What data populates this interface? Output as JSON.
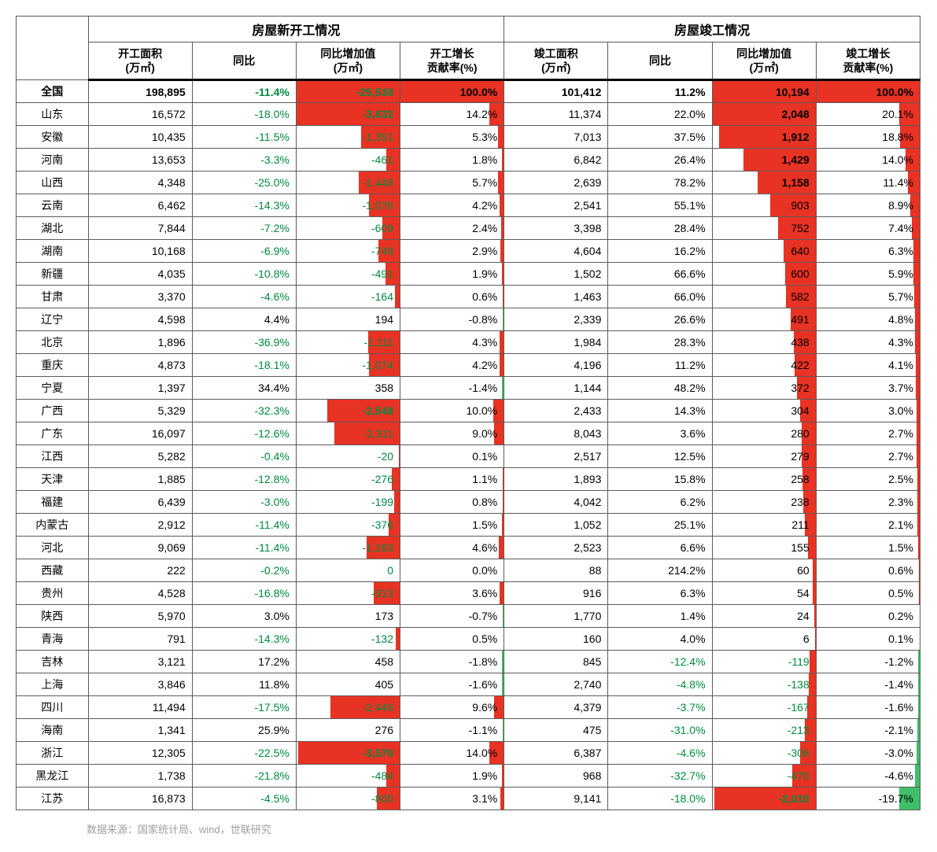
{
  "colors": {
    "green_text": "#008a3e",
    "red_bar": "#e83223",
    "green_bar": "#3fbf6b",
    "border": "#5b5b5b"
  },
  "headers": {
    "group1": "房屋新开工情况",
    "group2": "房屋竣工情况",
    "col1": "开工面积\n(万㎡)",
    "col2": "同比",
    "col3": "同比增加值\n(万㎡)",
    "col4": "开工增长\n贡献率(%)",
    "col5": "竣工面积\n(万㎡)",
    "col6": "同比",
    "col7": "同比增加值\n(万㎡)",
    "col8": "竣工增长\n贡献率(%)"
  },
  "bar_config": {
    "delta1": {
      "min": -3632,
      "max": 458
    },
    "contrib1": {
      "min": -1.8,
      "max": 100.0,
      "neg_is_green": true
    },
    "delta2": {
      "min": -2010,
      "max": 2048
    },
    "contrib2": {
      "min": -19.7,
      "max": 100.0,
      "neg_is_green": true
    }
  },
  "rows": [
    {
      "name": "全国",
      "total": true,
      "area1": "198,895",
      "yoy1": "-11.4%",
      "yoy1_neg": true,
      "delta1": "-25,538",
      "delta1_v": -25538,
      "delta1_bold": true,
      "contrib1": "100.0%",
      "contrib1_v": 100.0,
      "area2": "101,412",
      "yoy2": "11.2%",
      "yoy2_neg": false,
      "delta2": "10,194",
      "delta2_v": 10194,
      "delta2_bold": true,
      "contrib2": "100.0%",
      "contrib2_v": 100.0
    },
    {
      "name": "山东",
      "area1": "16,572",
      "yoy1": "-18.0%",
      "yoy1_neg": true,
      "delta1": "-3,632",
      "delta1_v": -3632,
      "delta1_bold": true,
      "contrib1": "14.2%",
      "contrib1_v": 14.2,
      "area2": "11,374",
      "yoy2": "22.0%",
      "yoy2_neg": false,
      "delta2": "2,048",
      "delta2_v": 2048,
      "delta2_bold": true,
      "contrib2": "20.1%",
      "contrib2_v": 20.1
    },
    {
      "name": "安徽",
      "area1": "10,435",
      "yoy1": "-11.5%",
      "yoy1_neg": true,
      "delta1": "-1,351",
      "delta1_v": -1351,
      "contrib1": "5.3%",
      "contrib1_v": 5.3,
      "area2": "7,013",
      "yoy2": "37.5%",
      "yoy2_neg": false,
      "delta2": "1,912",
      "delta2_v": 1912,
      "delta2_bold": true,
      "contrib2": "18.8%",
      "contrib2_v": 18.8
    },
    {
      "name": "河南",
      "area1": "13,653",
      "yoy1": "-3.3%",
      "yoy1_neg": true,
      "delta1": "-461",
      "delta1_v": -461,
      "contrib1": "1.8%",
      "contrib1_v": 1.8,
      "area2": "6,842",
      "yoy2": "26.4%",
      "yoy2_neg": false,
      "delta2": "1,429",
      "delta2_v": 1429,
      "delta2_bold": true,
      "contrib2": "14.0%",
      "contrib2_v": 14.0
    },
    {
      "name": "山西",
      "area1": "4,348",
      "yoy1": "-25.0%",
      "yoy1_neg": true,
      "delta1": "-1,448",
      "delta1_v": -1448,
      "contrib1": "5.7%",
      "contrib1_v": 5.7,
      "area2": "2,639",
      "yoy2": "78.2%",
      "yoy2_neg": false,
      "delta2": "1,158",
      "delta2_v": 1158,
      "delta2_bold": true,
      "contrib2": "11.4%",
      "contrib2_v": 11.4
    },
    {
      "name": "云南",
      "area1": "6,462",
      "yoy1": "-14.3%",
      "yoy1_neg": true,
      "delta1": "-1,076",
      "delta1_v": -1076,
      "contrib1": "4.2%",
      "contrib1_v": 4.2,
      "area2": "2,541",
      "yoy2": "55.1%",
      "yoy2_neg": false,
      "delta2": "903",
      "delta2_v": 903,
      "contrib2": "8.9%",
      "contrib2_v": 8.9
    },
    {
      "name": "湖北",
      "area1": "7,844",
      "yoy1": "-7.2%",
      "yoy1_neg": true,
      "delta1": "-609",
      "delta1_v": -609,
      "contrib1": "2.4%",
      "contrib1_v": 2.4,
      "area2": "3,398",
      "yoy2": "28.4%",
      "yoy2_neg": false,
      "delta2": "752",
      "delta2_v": 752,
      "contrib2": "7.4%",
      "contrib2_v": 7.4
    },
    {
      "name": "湖南",
      "area1": "10,168",
      "yoy1": "-6.9%",
      "yoy1_neg": true,
      "delta1": "-748",
      "delta1_v": -748,
      "contrib1": "2.9%",
      "contrib1_v": 2.9,
      "area2": "4,604",
      "yoy2": "16.2%",
      "yoy2_neg": false,
      "delta2": "640",
      "delta2_v": 640,
      "contrib2": "6.3%",
      "contrib2_v": 6.3
    },
    {
      "name": "新疆",
      "area1": "4,035",
      "yoy1": "-10.8%",
      "yoy1_neg": true,
      "delta1": "-491",
      "delta1_v": -491,
      "contrib1": "1.9%",
      "contrib1_v": 1.9,
      "area2": "1,502",
      "yoy2": "66.6%",
      "yoy2_neg": false,
      "delta2": "600",
      "delta2_v": 600,
      "contrib2": "5.9%",
      "contrib2_v": 5.9
    },
    {
      "name": "甘肃",
      "area1": "3,370",
      "yoy1": "-4.6%",
      "yoy1_neg": true,
      "delta1": "-164",
      "delta1_v": -164,
      "contrib1": "0.6%",
      "contrib1_v": 0.6,
      "area2": "1,463",
      "yoy2": "66.0%",
      "yoy2_neg": false,
      "delta2": "582",
      "delta2_v": 582,
      "contrib2": "5.7%",
      "contrib2_v": 5.7
    },
    {
      "name": "辽宁",
      "area1": "4,598",
      "yoy1": "4.4%",
      "yoy1_neg": false,
      "delta1": "194",
      "delta1_v": 194,
      "contrib1": "-0.8%",
      "contrib1_v": -0.8,
      "area2": "2,339",
      "yoy2": "26.6%",
      "yoy2_neg": false,
      "delta2": "491",
      "delta2_v": 491,
      "contrib2": "4.8%",
      "contrib2_v": 4.8
    },
    {
      "name": "北京",
      "area1": "1,896",
      "yoy1": "-36.9%",
      "yoy1_neg": true,
      "delta1": "-1,111",
      "delta1_v": -1111,
      "contrib1": "4.3%",
      "contrib1_v": 4.3,
      "area2": "1,984",
      "yoy2": "28.3%",
      "yoy2_neg": false,
      "delta2": "438",
      "delta2_v": 438,
      "contrib2": "4.3%",
      "contrib2_v": 4.3
    },
    {
      "name": "重庆",
      "area1": "4,873",
      "yoy1": "-18.1%",
      "yoy1_neg": true,
      "delta1": "-1,074",
      "delta1_v": -1074,
      "contrib1": "4.2%",
      "contrib1_v": 4.2,
      "area2": "4,196",
      "yoy2": "11.2%",
      "yoy2_neg": false,
      "delta2": "422",
      "delta2_v": 422,
      "contrib2": "4.1%",
      "contrib2_v": 4.1
    },
    {
      "name": "宁夏",
      "area1": "1,397",
      "yoy1": "34.4%",
      "yoy1_neg": false,
      "delta1": "358",
      "delta1_v": 358,
      "contrib1": "-1.4%",
      "contrib1_v": -1.4,
      "area2": "1,144",
      "yoy2": "48.2%",
      "yoy2_neg": false,
      "delta2": "372",
      "delta2_v": 372,
      "contrib2": "3.7%",
      "contrib2_v": 3.7
    },
    {
      "name": "广西",
      "area1": "5,329",
      "yoy1": "-32.3%",
      "yoy1_neg": true,
      "delta1": "-2,548",
      "delta1_v": -2548,
      "delta1_bold": true,
      "contrib1": "10.0%",
      "contrib1_v": 10.0,
      "area2": "2,433",
      "yoy2": "14.3%",
      "yoy2_neg": false,
      "delta2": "304",
      "delta2_v": 304,
      "contrib2": "3.0%",
      "contrib2_v": 3.0
    },
    {
      "name": "广东",
      "area1": "16,097",
      "yoy1": "-12.6%",
      "yoy1_neg": true,
      "delta1": "-2,311",
      "delta1_v": -2311,
      "contrib1": "9.0%",
      "contrib1_v": 9.0,
      "area2": "8,043",
      "yoy2": "3.6%",
      "yoy2_neg": false,
      "delta2": "280",
      "delta2_v": 280,
      "contrib2": "2.7%",
      "contrib2_v": 2.7
    },
    {
      "name": "江西",
      "area1": "5,282",
      "yoy1": "-0.4%",
      "yoy1_neg": true,
      "delta1": "-20",
      "delta1_v": -20,
      "contrib1": "0.1%",
      "contrib1_v": 0.1,
      "area2": "2,517",
      "yoy2": "12.5%",
      "yoy2_neg": false,
      "delta2": "279",
      "delta2_v": 279,
      "contrib2": "2.7%",
      "contrib2_v": 2.7
    },
    {
      "name": "天津",
      "area1": "1,885",
      "yoy1": "-12.8%",
      "yoy1_neg": true,
      "delta1": "-276",
      "delta1_v": -276,
      "contrib1": "1.1%",
      "contrib1_v": 1.1,
      "area2": "1,893",
      "yoy2": "15.8%",
      "yoy2_neg": false,
      "delta2": "258",
      "delta2_v": 258,
      "contrib2": "2.5%",
      "contrib2_v": 2.5
    },
    {
      "name": "福建",
      "area1": "6,439",
      "yoy1": "-3.0%",
      "yoy1_neg": true,
      "delta1": "-199",
      "delta1_v": -199,
      "contrib1": "0.8%",
      "contrib1_v": 0.8,
      "area2": "4,042",
      "yoy2": "6.2%",
      "yoy2_neg": false,
      "delta2": "238",
      "delta2_v": 238,
      "contrib2": "2.3%",
      "contrib2_v": 2.3
    },
    {
      "name": "内蒙古",
      "area1": "2,912",
      "yoy1": "-11.4%",
      "yoy1_neg": true,
      "delta1": "-376",
      "delta1_v": -376,
      "contrib1": "1.5%",
      "contrib1_v": 1.5,
      "area2": "1,052",
      "yoy2": "25.1%",
      "yoy2_neg": false,
      "delta2": "211",
      "delta2_v": 211,
      "contrib2": "2.1%",
      "contrib2_v": 2.1
    },
    {
      "name": "河北",
      "area1": "9,069",
      "yoy1": "-11.4%",
      "yoy1_neg": true,
      "delta1": "-1,163",
      "delta1_v": -1163,
      "contrib1": "4.6%",
      "contrib1_v": 4.6,
      "area2": "2,523",
      "yoy2": "6.6%",
      "yoy2_neg": false,
      "delta2": "155",
      "delta2_v": 155,
      "contrib2": "1.5%",
      "contrib2_v": 1.5
    },
    {
      "name": "西藏",
      "area1": "222",
      "yoy1": "-0.2%",
      "yoy1_neg": true,
      "delta1": "0",
      "delta1_v": 0,
      "contrib1": "0.0%",
      "contrib1_v": 0.0,
      "area2": "88",
      "yoy2": "214.2%",
      "yoy2_neg": false,
      "delta2": "60",
      "delta2_v": 60,
      "contrib2": "0.6%",
      "contrib2_v": 0.6
    },
    {
      "name": "贵州",
      "area1": "4,528",
      "yoy1": "-16.8%",
      "yoy1_neg": true,
      "delta1": "-913",
      "delta1_v": -913,
      "contrib1": "3.6%",
      "contrib1_v": 3.6,
      "area2": "916",
      "yoy2": "6.3%",
      "yoy2_neg": false,
      "delta2": "54",
      "delta2_v": 54,
      "contrib2": "0.5%",
      "contrib2_v": 0.5
    },
    {
      "name": "陕西",
      "area1": "5,970",
      "yoy1": "3.0%",
      "yoy1_neg": false,
      "delta1": "173",
      "delta1_v": 173,
      "contrib1": "-0.7%",
      "contrib1_v": -0.7,
      "area2": "1,770",
      "yoy2": "1.4%",
      "yoy2_neg": false,
      "delta2": "24",
      "delta2_v": 24,
      "contrib2": "0.2%",
      "contrib2_v": 0.2
    },
    {
      "name": "青海",
      "area1": "791",
      "yoy1": "-14.3%",
      "yoy1_neg": true,
      "delta1": "-132",
      "delta1_v": -132,
      "contrib1": "0.5%",
      "contrib1_v": 0.5,
      "area2": "160",
      "yoy2": "4.0%",
      "yoy2_neg": false,
      "delta2": "6",
      "delta2_v": 6,
      "contrib2": "0.1%",
      "contrib2_v": 0.1
    },
    {
      "name": "吉林",
      "area1": "3,121",
      "yoy1": "17.2%",
      "yoy1_neg": false,
      "delta1": "458",
      "delta1_v": 458,
      "contrib1": "-1.8%",
      "contrib1_v": -1.8,
      "area2": "845",
      "yoy2": "-12.4%",
      "yoy2_neg": true,
      "delta2": "-119",
      "delta2_v": -119,
      "contrib2": "-1.2%",
      "contrib2_v": -1.2
    },
    {
      "name": "上海",
      "area1": "3,846",
      "yoy1": "11.8%",
      "yoy1_neg": false,
      "delta1": "405",
      "delta1_v": 405,
      "contrib1": "-1.6%",
      "contrib1_v": -1.6,
      "area2": "2,740",
      "yoy2": "-4.8%",
      "yoy2_neg": true,
      "delta2": "-138",
      "delta2_v": -138,
      "contrib2": "-1.4%",
      "contrib2_v": -1.4
    },
    {
      "name": "四川",
      "area1": "11,494",
      "yoy1": "-17.5%",
      "yoy1_neg": true,
      "delta1": "-2,446",
      "delta1_v": -2446,
      "contrib1": "9.6%",
      "contrib1_v": 9.6,
      "area2": "4,379",
      "yoy2": "-3.7%",
      "yoy2_neg": true,
      "delta2": "-167",
      "delta2_v": -167,
      "contrib2": "-1.6%",
      "contrib2_v": -1.6
    },
    {
      "name": "海南",
      "area1": "1,341",
      "yoy1": "25.9%",
      "yoy1_neg": false,
      "delta1": "276",
      "delta1_v": 276,
      "contrib1": "-1.1%",
      "contrib1_v": -1.1,
      "area2": "475",
      "yoy2": "-31.0%",
      "yoy2_neg": true,
      "delta2": "-213",
      "delta2_v": -213,
      "contrib2": "-2.1%",
      "contrib2_v": -2.1
    },
    {
      "name": "浙江",
      "area1": "12,305",
      "yoy1": "-22.5%",
      "yoy1_neg": true,
      "delta1": "-3,570",
      "delta1_v": -3570,
      "delta1_bold": true,
      "contrib1": "14.0%",
      "contrib1_v": 14.0,
      "area2": "6,387",
      "yoy2": "-4.6%",
      "yoy2_neg": true,
      "delta2": "-306",
      "delta2_v": -306,
      "contrib2": "-3.0%",
      "contrib2_v": -3.0
    },
    {
      "name": "黑龙江",
      "area1": "1,738",
      "yoy1": "-21.8%",
      "yoy1_neg": true,
      "delta1": "-484",
      "delta1_v": -484,
      "contrib1": "1.9%",
      "contrib1_v": 1.9,
      "area2": "968",
      "yoy2": "-32.7%",
      "yoy2_neg": true,
      "delta2": "-470",
      "delta2_v": -470,
      "contrib2": "-4.6%",
      "contrib2_v": -4.6
    },
    {
      "name": "江苏",
      "area1": "16,873",
      "yoy1": "-4.5%",
      "yoy1_neg": true,
      "delta1": "-800",
      "delta1_v": -800,
      "contrib1": "3.1%",
      "contrib1_v": 3.1,
      "area2": "9,141",
      "yoy2": "-18.0%",
      "yoy2_neg": true,
      "delta2": "-2,010",
      "delta2_v": -2010,
      "delta2_bold": true,
      "contrib2": "-19.7%",
      "contrib2_v": -19.7
    }
  ],
  "footer": "数据来源：国家统计局、wind，世联研究"
}
